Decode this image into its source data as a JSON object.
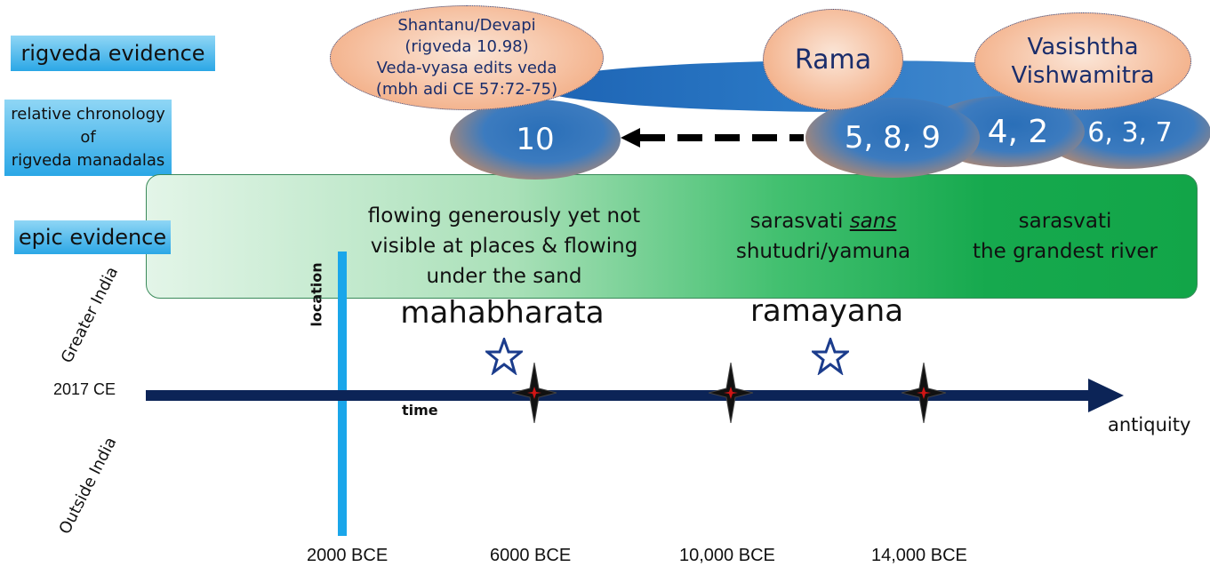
{
  "labels": {
    "rigveda_evidence": "rigveda evidence",
    "relative_chronology_1": "relative chronology",
    "relative_chronology_2": "of",
    "relative_chronology_3": "rigveda manadalas",
    "epic_evidence": "epic evidence"
  },
  "ellipses": {
    "shantanu_1": "Shantanu/Devapi",
    "shantanu_2": "(rigveda 10.98)",
    "shantanu_3": "Veda-vyasa edits veda",
    "shantanu_4": "(mbh adi CE 57:72-75)",
    "rama": "Rama",
    "vasishtha_1": "Vasishtha",
    "vasishtha_2": "Vishwamitra",
    "m10": "10",
    "m589": "5, 8, 9",
    "m42": "4, 2",
    "m637": "6, 3, 7"
  },
  "epic_box": {
    "text1_l1": "flowing generously yet not",
    "text1_l2": "visible at places & flowing",
    "text1_l3": "under the sand",
    "text2_pre": "sarasvati ",
    "text2_em": "sans",
    "text2_l2": "shutudri/yamuna",
    "text3_l1": "sarasvati",
    "text3_l2": "the grandest river"
  },
  "epics": {
    "mahabharata": "mahabharata",
    "ramayana": "ramayana"
  },
  "axis": {
    "start": "2017 CE",
    "time": "time",
    "end": "antiquity",
    "location": "location",
    "greater_india": "Greater India",
    "outside_india": "Outside India",
    "ticks": [
      "2000 BCE",
      "6000 BCE",
      "10,000 BCE",
      "14,000 BCE"
    ]
  },
  "colors": {
    "axis": "#0c2457",
    "location_bar": "#1aa6ea",
    "star_outline": "#1b3c8c",
    "star_fill_dark": "#111111",
    "star_center": "#d01515"
  }
}
